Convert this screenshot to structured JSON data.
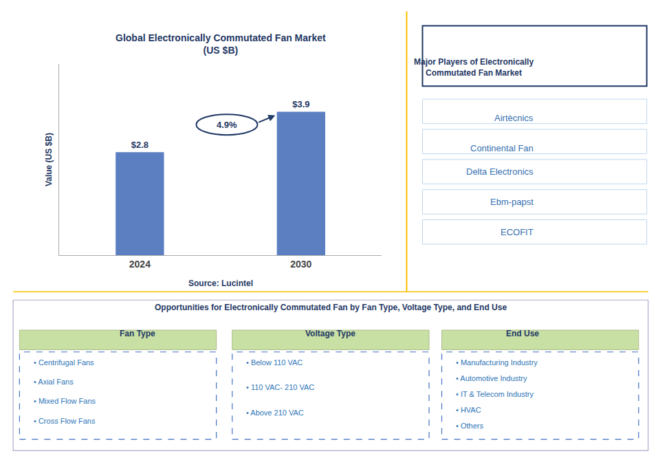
{
  "chart_data": {
    "type": "bar",
    "title": "Global Electronically Commutated Fan Market\n(US $B)",
    "ylabel": "Value (US $B)",
    "categories": [
      "2024",
      "2030"
    ],
    "values": [
      2.8,
      3.9
    ],
    "value_labels": [
      "$2.8",
      "$3.9"
    ],
    "data_labels": true,
    "color": "#5B7FC0",
    "ylim": [
      0,
      5.2
    ],
    "yticks": [],
    "tick_labels": "x",
    "grid": false,
    "annotations": [
      "4.9%"
    ],
    "source": "Source: Lucintel"
  },
  "major_players": {
    "title": "Major Players of Electronically\nCommutated Fan Market",
    "items": [
      "Airtècnics",
      "Continental Fan",
      "Delta Electronics",
      "Ebm-papst",
      "ECOFIT"
    ]
  },
  "opportunities": {
    "title": "Opportunities for Electronically Commutated Fan by Fan Type, Voltage Type, and End Use",
    "columns": [
      {
        "header": "Fan Type",
        "items": [
          "• Centrifugal Fans",
          "• Axial Fans",
          "• Mixed Flow Fans",
          "• Cross Flow Fans"
        ]
      },
      {
        "header": "Voltage Type",
        "items": [
          "• Below 110 VAC",
          "• 110 VAC- 210 VAC",
          "• Above 210 VAC"
        ]
      },
      {
        "header": "End Use",
        "items": [
          "• Manufacturing Industry",
          "• Automotive Industry",
          "• IT & Telecom Industry",
          "• HVAC",
          "• Others"
        ]
      }
    ]
  }
}
